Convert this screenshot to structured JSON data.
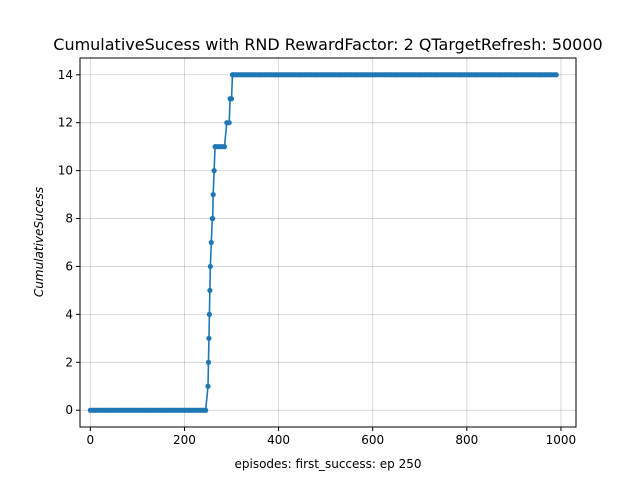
{
  "chart_data": {
    "type": "line",
    "title": "CumulativeSucess with RND RewardFactor: 2 QTargetRefresh: 50000",
    "xlabel": "episodes: first_success: ep 250",
    "ylabel": "CumulativeSucess",
    "xlim": [
      -22,
      1032
    ],
    "ylim": [
      -0.7,
      14.7
    ],
    "x_ticks": [
      0,
      200,
      400,
      600,
      800,
      1000
    ],
    "y_ticks": [
      0,
      2,
      4,
      6,
      8,
      10,
      12,
      14
    ],
    "grid": true,
    "sample_step": 5,
    "x_end": 990,
    "series": [
      {
        "color": "#1f77b4",
        "marker": "circle",
        "steps": [
          {
            "x": 0,
            "y": 0
          },
          {
            "x": 250,
            "y": 1
          },
          {
            "x": 251,
            "y": 2
          },
          {
            "x": 252,
            "y": 3
          },
          {
            "x": 253,
            "y": 4
          },
          {
            "x": 254,
            "y": 5
          },
          {
            "x": 255,
            "y": 6
          },
          {
            "x": 257,
            "y": 7
          },
          {
            "x": 259,
            "y": 8
          },
          {
            "x": 261,
            "y": 9
          },
          {
            "x": 263,
            "y": 10
          },
          {
            "x": 265,
            "y": 11
          },
          {
            "x": 290,
            "y": 12
          },
          {
            "x": 297,
            "y": 13
          },
          {
            "x": 302,
            "y": 14
          }
        ]
      }
    ]
  }
}
